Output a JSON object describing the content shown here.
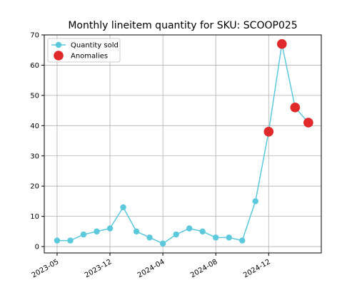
{
  "chart_data": {
    "type": "line",
    "title": "Monthly lineitem quantity for SKU: SCOOP025",
    "categories": [
      "2023-05",
      null,
      null,
      null,
      "2023-12",
      null,
      null,
      null,
      "2024-04",
      null,
      null,
      null,
      "2024-08",
      null,
      null,
      null,
      "2024-12",
      null,
      null,
      null
    ],
    "series": [
      {
        "name": "Quantity sold",
        "color": "#5bc8dc",
        "values": [
          2,
          2,
          4,
          5,
          6,
          13,
          5,
          3,
          1,
          4,
          6,
          5,
          3,
          3,
          2,
          15,
          38,
          67,
          46,
          41
        ]
      },
      {
        "name": "Anomalies",
        "color": "#e0292a",
        "values": [
          null,
          null,
          null,
          null,
          null,
          null,
          null,
          null,
          null,
          null,
          null,
          null,
          null,
          null,
          null,
          null,
          38,
          67,
          46,
          41
        ]
      }
    ],
    "ylim": [
      -2.1,
      70
    ],
    "yticks": [
      0,
      10,
      20,
      30,
      40,
      50,
      60,
      70
    ],
    "grid": true,
    "legend": "upper left"
  }
}
